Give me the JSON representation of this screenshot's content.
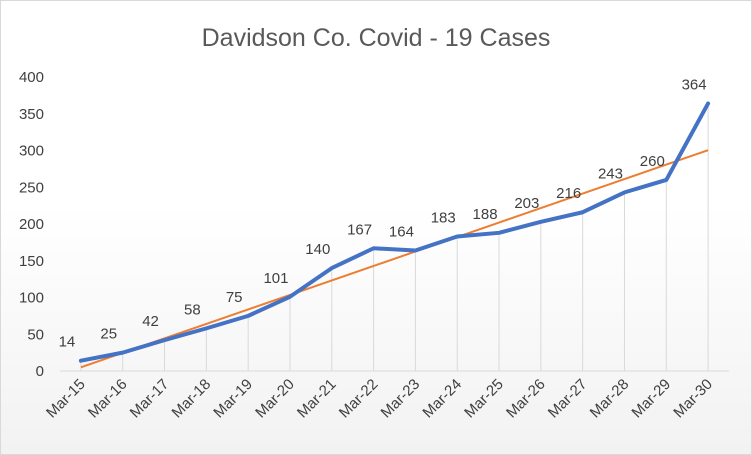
{
  "chart_data": {
    "type": "line",
    "title": "Davidson Co. Covid - 19 Cases",
    "xlabel": "",
    "ylabel": "",
    "categories": [
      "Mar-15",
      "Mar-16",
      "Mar-17",
      "Mar-18",
      "Mar-19",
      "Mar-20",
      "Mar-21",
      "Mar-22",
      "Mar-23",
      "Mar-24",
      "Mar-25",
      "Mar-26",
      "Mar-27",
      "Mar-28",
      "Mar-29",
      "Mar-30"
    ],
    "series": [
      {
        "values": [
          14,
          25,
          42,
          58,
          75,
          101,
          140,
          167,
          164,
          183,
          188,
          203,
          216,
          243,
          260,
          364
        ],
        "color": "#4472c4",
        "data_labels": true
      },
      {
        "values": [
          5,
          24.7,
          44.4,
          64.1,
          83.8,
          103.5,
          123.2,
          142.9,
          162.6,
          182.3,
          202,
          221.7,
          241.4,
          261.1,
          280.8,
          300.5
        ],
        "color": "#ed7d31",
        "kind": "linear trendline"
      }
    ],
    "ylim": [
      0,
      400
    ],
    "yticks": [
      "0",
      "50",
      "100",
      "150",
      "200",
      "250",
      "300",
      "350",
      "400"
    ],
    "drop_lines": true,
    "grid": false,
    "legend": "none"
  }
}
